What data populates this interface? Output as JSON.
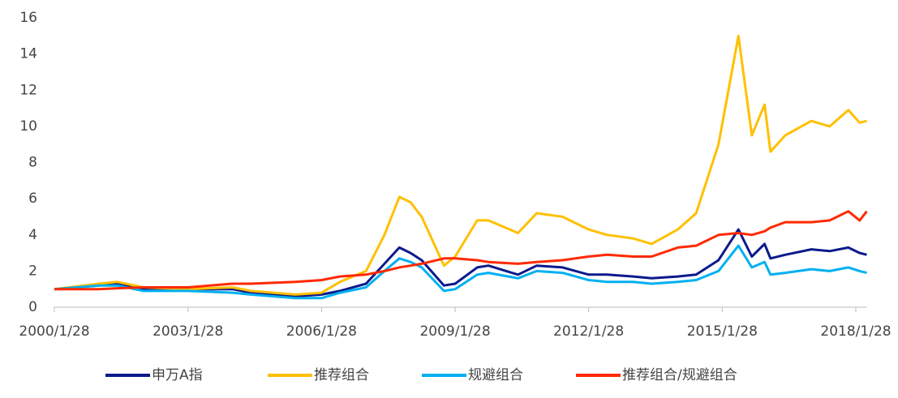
{
  "chart_data": {
    "type": "line",
    "x": [
      "2000/1/28",
      "2001/1/28",
      "2001/6/28",
      "2002/1/28",
      "2003/1/28",
      "2004/1/28",
      "2004/6/28",
      "2005/6/28",
      "2006/1/28",
      "2006/6/28",
      "2007/1/28",
      "2007/6/28",
      "2007/10/28",
      "2008/1/28",
      "2008/4/28",
      "2008/10/28",
      "2009/1/28",
      "2009/7/28",
      "2009/10/28",
      "2010/6/28",
      "2010/11/28",
      "2011/6/28",
      "2012/1/28",
      "2012/6/28",
      "2013/1/28",
      "2013/6/28",
      "2014/1/28",
      "2014/6/28",
      "2014/12/28",
      "2015/6/10",
      "2015/9/28",
      "2016/1/10",
      "2016/2/28",
      "2016/6/28",
      "2017/1/28",
      "2017/6/28",
      "2017/11/28",
      "2018/2/28",
      "2018/4/28"
    ],
    "series": [
      {
        "name": "申万A指",
        "color": "#0b1a8c",
        "values": [
          1,
          1.2,
          1.3,
          1.0,
          1.0,
          1.0,
          0.8,
          0.6,
          0.7,
          0.9,
          1.3,
          2.4,
          3.3,
          3.0,
          2.6,
          1.2,
          1.3,
          2.2,
          2.3,
          1.8,
          2.3,
          2.2,
          1.8,
          1.8,
          1.7,
          1.6,
          1.7,
          1.8,
          2.6,
          4.3,
          2.8,
          3.5,
          2.7,
          2.9,
          3.2,
          3.1,
          3.3,
          3.0,
          2.9
        ]
      },
      {
        "name": "推荐组合",
        "color": "#ffc000",
        "values": [
          1,
          1.3,
          1.4,
          1.1,
          1.0,
          1.1,
          0.9,
          0.7,
          0.8,
          1.4,
          2.0,
          4.0,
          6.1,
          5.8,
          5.0,
          2.3,
          2.8,
          4.8,
          4.8,
          4.1,
          5.2,
          5.0,
          4.3,
          4.0,
          3.8,
          3.5,
          4.3,
          5.2,
          9.0,
          15.0,
          9.5,
          11.2,
          8.6,
          9.5,
          10.3,
          10.0,
          10.9,
          10.2,
          10.3
        ]
      },
      {
        "name": "规避组合",
        "color": "#00b0f0",
        "values": [
          1,
          1.2,
          1.2,
          0.9,
          0.9,
          0.8,
          0.7,
          0.5,
          0.5,
          0.8,
          1.1,
          2.0,
          2.7,
          2.5,
          2.2,
          0.9,
          1.0,
          1.8,
          1.9,
          1.6,
          2.0,
          1.9,
          1.5,
          1.4,
          1.4,
          1.3,
          1.4,
          1.5,
          2.0,
          3.4,
          2.2,
          2.5,
          1.8,
          1.9,
          2.1,
          2.0,
          2.2,
          2.0,
          1.9
        ]
      },
      {
        "name": "推荐组合/规避组合",
        "color": "#ff2a00",
        "values": [
          1,
          1.0,
          1.05,
          1.1,
          1.1,
          1.3,
          1.3,
          1.4,
          1.5,
          1.7,
          1.8,
          2.0,
          2.2,
          2.3,
          2.4,
          2.7,
          2.7,
          2.6,
          2.5,
          2.4,
          2.5,
          2.6,
          2.8,
          2.9,
          2.8,
          2.8,
          3.3,
          3.4,
          4.0,
          4.1,
          4.0,
          4.2,
          4.4,
          4.7,
          4.7,
          4.8,
          5.3,
          4.8,
          5.3
        ]
      }
    ],
    "xlim": [
      "2000/1/28",
      "2018/4/28"
    ],
    "xticks": [
      "2000/1/28",
      "2003/1/28",
      "2006/1/28",
      "2009/1/28",
      "2012/1/28",
      "2015/1/28",
      "2018/1/28"
    ],
    "ylim": [
      0,
      16
    ],
    "yticks": [
      0,
      2,
      4,
      6,
      8,
      10,
      12,
      14,
      16
    ],
    "grid": false,
    "legend": "bottom"
  }
}
